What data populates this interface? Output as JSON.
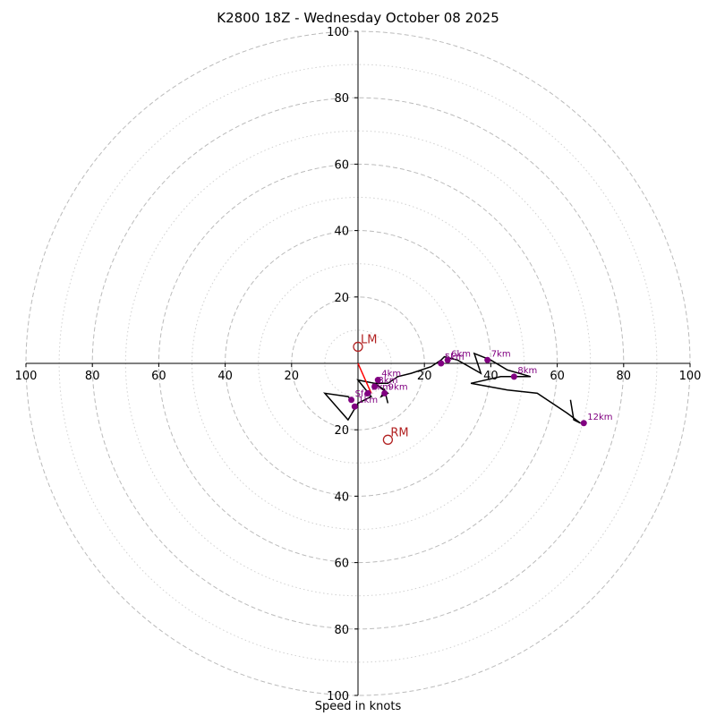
{
  "chart_data": {
    "type": "hodograph",
    "title": "K2800 18Z - Wednesday October 08 2025",
    "xlabel": "Speed in knots",
    "units": "knots",
    "axis_range": [
      -100,
      100
    ],
    "rings_major": [
      20,
      40,
      60,
      80,
      100
    ],
    "rings_minor": [
      10,
      30,
      50,
      70,
      90
    ],
    "axis_ticks": {
      "left": [
        "100",
        "80",
        "60",
        "40",
        "20"
      ],
      "right": [
        "20",
        "40",
        "60",
        "80",
        "100"
      ],
      "up": [
        "20",
        "40",
        "60",
        "80",
        "100"
      ],
      "down": [
        "20",
        "40",
        "60",
        "80",
        "100"
      ]
    },
    "trace": [
      [
        -2,
        -11
      ],
      [
        -3,
        -10
      ],
      [
        -10,
        -9
      ],
      [
        -3,
        -17
      ],
      [
        0,
        -12
      ],
      [
        2,
        -11
      ],
      [
        4,
        -10
      ],
      [
        0,
        -5
      ],
      [
        5,
        -6
      ],
      [
        9,
        -9
      ],
      [
        7,
        -10
      ],
      [
        8,
        -8
      ],
      [
        9,
        -12
      ],
      [
        8,
        -8
      ],
      [
        5,
        -6
      ],
      [
        9,
        -6
      ],
      [
        12,
        -4
      ],
      [
        16,
        -3
      ],
      [
        22,
        -1
      ],
      [
        25,
        1
      ],
      [
        26,
        2
      ],
      [
        30,
        1
      ],
      [
        37,
        -3
      ],
      [
        35,
        3
      ],
      [
        40,
        1
      ],
      [
        45,
        -2
      ],
      [
        52,
        -4
      ],
      [
        48,
        -4
      ],
      [
        43,
        -4
      ],
      [
        34,
        -6
      ],
      [
        45,
        -8
      ],
      [
        54,
        -9
      ],
      [
        63,
        -15
      ],
      [
        67,
        -18
      ],
      [
        65,
        -17
      ],
      [
        64,
        -11
      ]
    ],
    "height_markers": [
      {
        "label": "Sfc",
        "u": -2,
        "v": -11
      },
      {
        "label": "1km",
        "u": -1,
        "v": -13
      },
      {
        "label": "2km",
        "u": 3,
        "v": -9
      },
      {
        "label": "3km",
        "u": 5,
        "v": -7
      },
      {
        "label": "4km",
        "u": 6,
        "v": -5
      },
      {
        "label": "5km",
        "u": 25,
        "v": 0
      },
      {
        "label": "6km",
        "u": 27,
        "v": 1
      },
      {
        "label": "7km",
        "u": 39,
        "v": 1
      },
      {
        "label": "8km",
        "u": 47,
        "v": -4
      },
      {
        "label": "9km",
        "u": 8,
        "v": -9
      },
      {
        "label": "12km",
        "u": 68,
        "v": -18
      }
    ],
    "storm_motion": [
      {
        "label": "LM",
        "u": 0,
        "v": 5
      },
      {
        "label": "RM",
        "u": 9,
        "v": -23
      }
    ],
    "inflow_segment": [
      [
        0,
        0
      ],
      [
        4,
        -9
      ]
    ],
    "colors": {
      "trace": "#000000",
      "markers": "#800080",
      "storm_motion": "#b22222",
      "inflow": "#ff0000",
      "rings": "#bbbbbb"
    }
  }
}
